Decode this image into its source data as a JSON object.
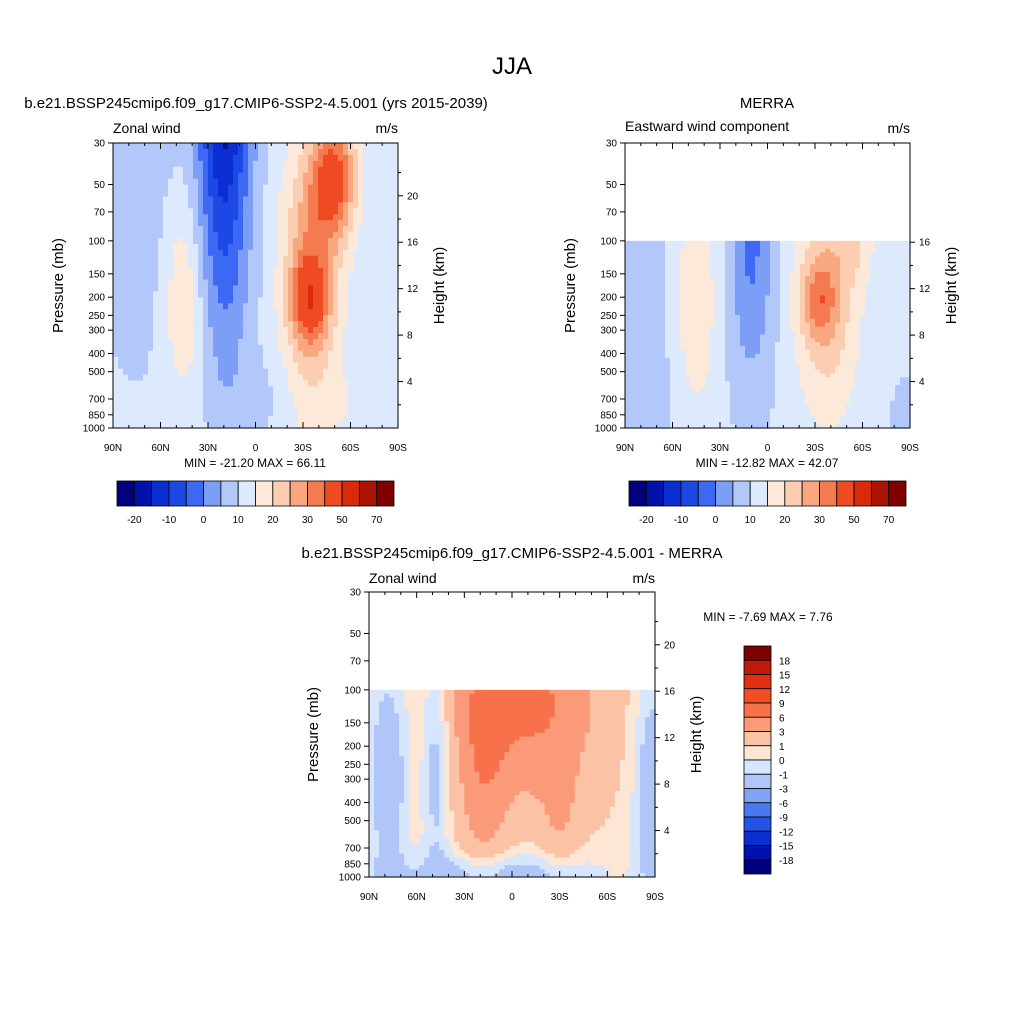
{
  "figure_title": "JJA",
  "chart_data": [
    {
      "type": "heatmap",
      "id": "model",
      "title": "b.e21.BSSP245cmip6.f09_g17.CMIP6-SSP2-4.5.001 (yrs 2015-2039)",
      "left_label": "Zonal wind",
      "right_label": "m/s",
      "ylabel": "Pressure (mb)",
      "y2label": "Height (km)",
      "x_ticks": [
        "90N",
        "60N",
        "30N",
        "0",
        "30S",
        "60S",
        "90S"
      ],
      "pressure_ticks": [
        "30",
        "50",
        "70",
        "100",
        "150",
        "200",
        "250",
        "300",
        "400",
        "500",
        "700",
        "850",
        "1000"
      ],
      "height_ticks": [
        "20",
        "16",
        "12",
        "8",
        "4"
      ],
      "data_top_mb": 30,
      "stats": "MIN = -21.20  MAX =  66.11",
      "colorbar_labels": [
        "-20",
        "-10",
        "0",
        "10",
        "20",
        "30",
        "50",
        "70"
      ],
      "levels": [
        -25,
        -20,
        -15,
        -10,
        -5,
        0,
        5,
        10,
        15,
        20,
        25,
        30,
        40,
        50,
        60,
        70
      ]
    },
    {
      "type": "heatmap",
      "id": "obs",
      "title": "MERRA",
      "left_label": "Eastward wind component",
      "right_label": "m/s",
      "ylabel": "Pressure (mb)",
      "y2label": "Height (km)",
      "x_ticks": [
        "90N",
        "60N",
        "30N",
        "0",
        "30S",
        "60S",
        "90S"
      ],
      "pressure_ticks": [
        "30",
        "50",
        "70",
        "100",
        "150",
        "200",
        "250",
        "300",
        "400",
        "500",
        "700",
        "850",
        "1000"
      ],
      "height_ticks": [
        "16",
        "12",
        "8",
        "4"
      ],
      "data_top_mb": 100,
      "stats": "MIN = -12.82  MAX =  42.07",
      "colorbar_labels": [
        "-20",
        "-10",
        "0",
        "10",
        "20",
        "30",
        "50",
        "70"
      ],
      "levels": [
        -25,
        -20,
        -15,
        -10,
        -5,
        0,
        5,
        10,
        15,
        20,
        25,
        30,
        40,
        50,
        60,
        70
      ]
    },
    {
      "type": "heatmap",
      "id": "diff",
      "title": "b.e21.BSSP245cmip6.f09_g17.CMIP6-SSP2-4.5.001 - MERRA",
      "left_label": "Zonal wind",
      "right_label": "m/s",
      "ylabel": "Pressure (mb)",
      "y2label": "Height (km)",
      "x_ticks": [
        "90N",
        "60N",
        "30N",
        "0",
        "30S",
        "60S",
        "90S"
      ],
      "pressure_ticks": [
        "30",
        "50",
        "70",
        "100",
        "150",
        "200",
        "250",
        "300",
        "400",
        "500",
        "700",
        "850",
        "1000"
      ],
      "height_ticks": [
        "20",
        "16",
        "12",
        "8",
        "4"
      ],
      "data_top_mb": 100,
      "stats": "MIN =  -7.69  MAX =   7.76",
      "colorbar_labels": [
        "18",
        "15",
        "12",
        "9",
        "6",
        "3",
        "1",
        "0",
        "-1",
        "-3",
        "-6",
        "-9",
        "-12",
        "-15",
        "-18"
      ],
      "levels": [
        -18,
        -15,
        -12,
        -9,
        -6,
        -3,
        -1,
        0,
        1,
        3,
        6,
        9,
        12,
        15,
        18
      ]
    }
  ],
  "colors": {
    "main_scale": [
      "#00007f",
      "#0012a9",
      "#0a2ed1",
      "#1c48e6",
      "#3d68f3",
      "#7d9ef7",
      "#b2c7fa",
      "#dde9fc",
      "#fde9da",
      "#fccdb0",
      "#f9a77f",
      "#f47a4f",
      "#ee4b22",
      "#d92a0e",
      "#ad1305",
      "#7f0000"
    ],
    "diff_scale": [
      "#7f0000",
      "#c01a08",
      "#e1300f",
      "#f04f23",
      "#f7714a",
      "#fa9a78",
      "#fcc2a5",
      "#fde6d4",
      "#d7e6fc",
      "#b0c6f8",
      "#7fa3f5",
      "#4c78ee",
      "#2352e4",
      "#0a2ed1",
      "#0012a9",
      "#00007f"
    ]
  }
}
